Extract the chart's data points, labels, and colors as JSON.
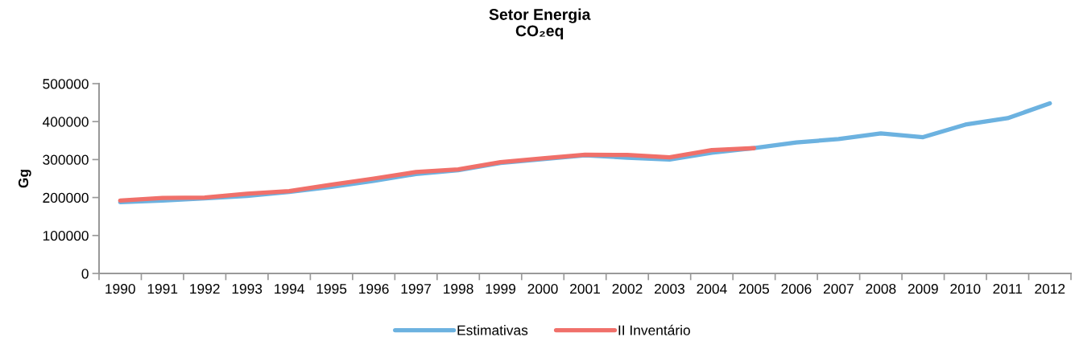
{
  "chart_data": {
    "type": "line",
    "title": "Setor Energia\nCO₂eq",
    "ylabel": "Gg",
    "categories": [
      "1990",
      "1991",
      "1992",
      "1993",
      "1994",
      "1995",
      "1996",
      "1997",
      "1998",
      "1999",
      "2000",
      "2001",
      "2002",
      "2003",
      "2004",
      "2005",
      "2006",
      "2007",
      "2008",
      "2009",
      "2010",
      "2011",
      "2012"
    ],
    "series": [
      {
        "name": "Estimativas",
        "color": "#6cb2e0",
        "values": [
          188000,
          192000,
          198000,
          204000,
          215000,
          228000,
          244000,
          262000,
          272000,
          291000,
          301000,
          311000,
          305000,
          300000,
          318000,
          330000,
          345000,
          354000,
          369000,
          359000,
          392000,
          409000,
          448000
        ]
      },
      {
        "name": "II Inventário",
        "color": "#f0706a",
        "values": [
          192000,
          199000,
          200000,
          210000,
          217000,
          234000,
          250000,
          267000,
          274000,
          293000,
          303000,
          313000,
          312000,
          306000,
          325000,
          330000,
          null,
          null,
          null,
          null,
          null,
          null,
          null
        ]
      }
    ],
    "ylim": [
      0,
      500000
    ],
    "yticks": [
      0,
      100000,
      200000,
      300000,
      400000,
      500000
    ],
    "legend": "bottom",
    "marker": "none",
    "line_style": "solid"
  }
}
